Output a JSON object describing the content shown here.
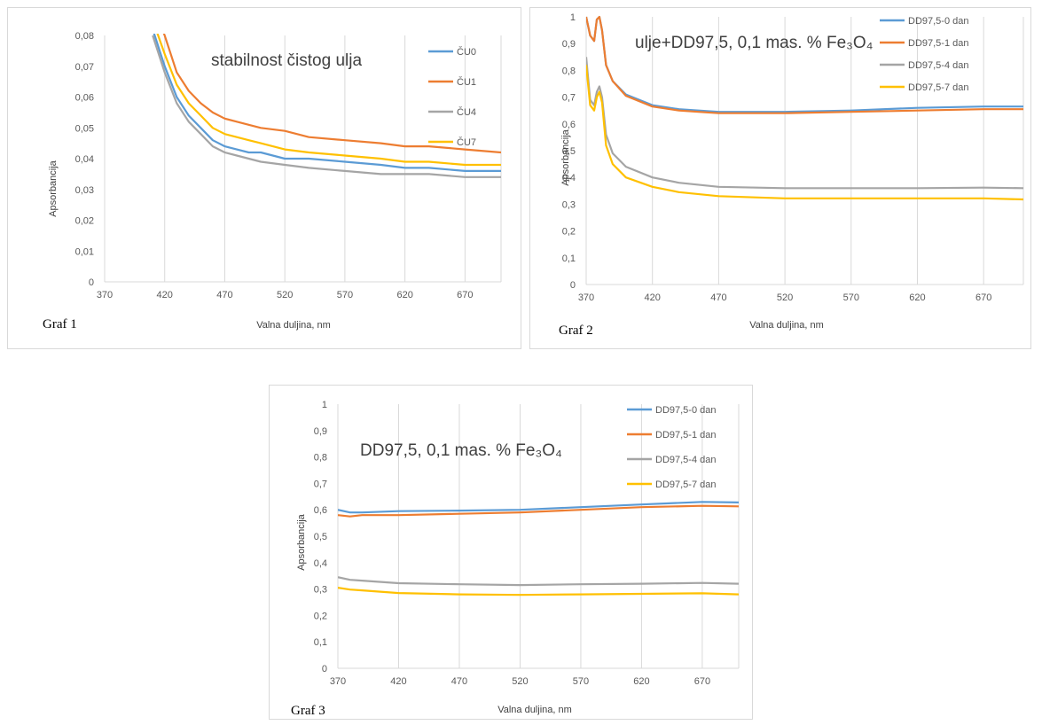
{
  "colors": {
    "blue": "#5b9bd5",
    "orange": "#ed7d31",
    "gray": "#a5a5a5",
    "yellow": "#ffc000",
    "grid": "#d9d9d9",
    "text": "#595959"
  },
  "chart_data": [
    {
      "type": "line",
      "title": "",
      "annotation": "stabilnost čistog ulja",
      "caption": "Graf 1",
      "xlabel": "Valna duljina, nm",
      "ylabel": "Apsorbancija",
      "xlim": [
        370,
        700
      ],
      "ylim": [
        0,
        0.08
      ],
      "xticks": [
        370,
        420,
        470,
        520,
        570,
        620,
        670
      ],
      "xtick_labels": [
        "370",
        "420",
        "470",
        "520",
        "570",
        "620",
        "670"
      ],
      "yticks": [
        0,
        0.01,
        0.02,
        0.03,
        0.04,
        0.05,
        0.06,
        0.07,
        0.08
      ],
      "ytick_labels": [
        "0",
        "0,01",
        "0,02",
        "0,03",
        "0,04",
        "0,05",
        "0,06",
        "0,07",
        "0,08"
      ],
      "grid": "vertical",
      "legend_position": "right",
      "x": [
        410,
        420,
        430,
        440,
        450,
        460,
        470,
        480,
        490,
        500,
        520,
        540,
        570,
        600,
        620,
        640,
        670,
        700
      ],
      "series": [
        {
          "name": "ČU0",
          "color": "#5b9bd5",
          "values": [
            0.082,
            0.07,
            0.06,
            0.054,
            0.05,
            0.046,
            0.044,
            0.043,
            0.042,
            0.042,
            0.04,
            0.04,
            0.039,
            0.038,
            0.037,
            0.037,
            0.036,
            0.036
          ]
        },
        {
          "name": "ČU1",
          "color": "#ed7d31",
          "values": [
            0.09,
            0.08,
            0.068,
            0.062,
            0.058,
            0.055,
            0.053,
            0.052,
            0.051,
            0.05,
            0.049,
            0.047,
            0.046,
            0.045,
            0.044,
            0.044,
            0.043,
            0.042
          ]
        },
        {
          "name": "ČU4",
          "color": "#a5a5a5",
          "values": [
            0.08,
            0.068,
            0.058,
            0.052,
            0.048,
            0.044,
            0.042,
            0.041,
            0.04,
            0.039,
            0.038,
            0.037,
            0.036,
            0.035,
            0.035,
            0.035,
            0.034,
            0.034
          ]
        },
        {
          "name": "ČU7",
          "color": "#ffc000",
          "values": [
            0.085,
            0.074,
            0.064,
            0.058,
            0.054,
            0.05,
            0.048,
            0.047,
            0.046,
            0.045,
            0.043,
            0.042,
            0.041,
            0.04,
            0.039,
            0.039,
            0.038,
            0.038
          ]
        }
      ]
    },
    {
      "type": "line",
      "title": "",
      "annotation": "ulje+DD97,5, 0,1 mas. % Fe₃O₄",
      "caption": "Graf 2",
      "xlabel": "Valna duljina, nm",
      "ylabel": "Apsorbancija",
      "xlim": [
        370,
        700
      ],
      "ylim": [
        0,
        1
      ],
      "xticks": [
        370,
        420,
        470,
        520,
        570,
        620,
        670
      ],
      "xtick_labels": [
        "370",
        "420",
        "470",
        "520",
        "570",
        "620",
        "670"
      ],
      "yticks": [
        0,
        0.1,
        0.2,
        0.3,
        0.4,
        0.5,
        0.6,
        0.7,
        0.8,
        0.9,
        1
      ],
      "ytick_labels": [
        "0",
        "0,1",
        "0,2",
        "0,3",
        "0,4",
        "0,5",
        "0,6",
        "0,7",
        "0,8",
        "0,9",
        "1"
      ],
      "grid": "vertical",
      "legend_position": "top-right",
      "x": [
        370,
        373,
        376,
        378,
        380,
        382,
        385,
        390,
        400,
        420,
        440,
        470,
        520,
        570,
        620,
        670,
        700
      ],
      "series": [
        {
          "name": "DD97,5-0 dan",
          "color": "#5b9bd5",
          "values": [
            1.0,
            0.93,
            0.91,
            0.99,
            1.0,
            0.95,
            0.82,
            0.76,
            0.71,
            0.67,
            0.655,
            0.645,
            0.645,
            0.65,
            0.66,
            0.665,
            0.665
          ]
        },
        {
          "name": "DD97,5-1 dan",
          "color": "#ed7d31",
          "values": [
            1.0,
            0.93,
            0.91,
            0.99,
            1.0,
            0.95,
            0.82,
            0.76,
            0.705,
            0.665,
            0.65,
            0.64,
            0.64,
            0.645,
            0.65,
            0.655,
            0.655
          ]
        },
        {
          "name": "DD97,5-4 dan",
          "color": "#a5a5a5",
          "values": [
            0.85,
            0.69,
            0.67,
            0.72,
            0.74,
            0.7,
            0.56,
            0.49,
            0.44,
            0.4,
            0.38,
            0.365,
            0.36,
            0.36,
            0.36,
            0.362,
            0.36
          ]
        },
        {
          "name": "DD97,5-7 dan",
          "color": "#ffc000",
          "values": [
            0.82,
            0.67,
            0.65,
            0.7,
            0.72,
            0.68,
            0.52,
            0.45,
            0.4,
            0.365,
            0.345,
            0.33,
            0.322,
            0.322,
            0.322,
            0.322,
            0.318
          ]
        }
      ]
    },
    {
      "type": "line",
      "title": "",
      "annotation": "DD97,5, 0,1 mas. % Fe₃O₄",
      "caption": "Graf 3",
      "xlabel": "Valna duljina, nm",
      "ylabel": "Apsorbancija",
      "xlim": [
        370,
        700
      ],
      "ylim": [
        0,
        1
      ],
      "xticks": [
        370,
        420,
        470,
        520,
        570,
        620,
        670
      ],
      "xtick_labels": [
        "370",
        "420",
        "470",
        "520",
        "570",
        "620",
        "670"
      ],
      "yticks": [
        0,
        0.1,
        0.2,
        0.3,
        0.4,
        0.5,
        0.6,
        0.7,
        0.8,
        0.9,
        1
      ],
      "ytick_labels": [
        "0",
        "0,1",
        "0,2",
        "0,3",
        "0,4",
        "0,5",
        "0,6",
        "0,7",
        "0,8",
        "0,9",
        "1"
      ],
      "grid": "vertical",
      "legend_position": "top-right",
      "x": [
        370,
        380,
        390,
        420,
        470,
        520,
        570,
        620,
        670,
        700
      ],
      "series": [
        {
          "name": "DD97,5-0 dan",
          "color": "#5b9bd5",
          "values": [
            0.6,
            0.59,
            0.59,
            0.595,
            0.597,
            0.6,
            0.61,
            0.62,
            0.63,
            0.628
          ]
        },
        {
          "name": "DD97,5-1 dan",
          "color": "#ed7d31",
          "values": [
            0.58,
            0.575,
            0.58,
            0.58,
            0.585,
            0.59,
            0.6,
            0.61,
            0.615,
            0.613
          ]
        },
        {
          "name": "DD97,5-4 dan",
          "color": "#a5a5a5",
          "values": [
            0.345,
            0.335,
            0.332,
            0.322,
            0.318,
            0.315,
            0.318,
            0.32,
            0.323,
            0.32
          ]
        },
        {
          "name": "DD97,5-7 dan",
          "color": "#ffc000",
          "values": [
            0.305,
            0.298,
            0.295,
            0.285,
            0.28,
            0.278,
            0.28,
            0.282,
            0.284,
            0.28
          ]
        }
      ]
    }
  ]
}
